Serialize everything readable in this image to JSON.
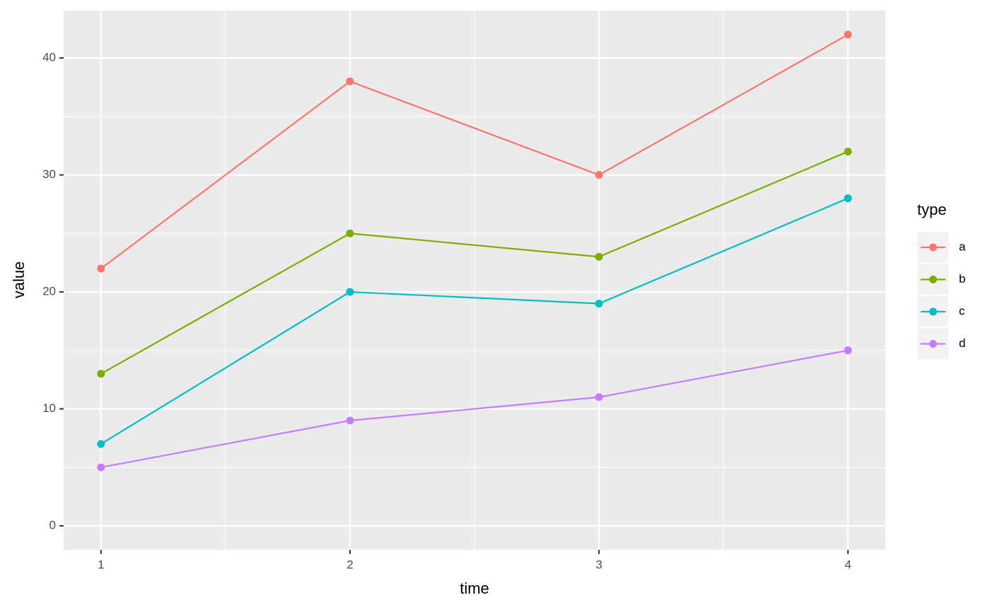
{
  "chart_data": {
    "type": "line",
    "x_label": "time",
    "y_label": "value",
    "x": [
      1,
      2,
      3,
      4
    ],
    "series": [
      {
        "name": "a",
        "color": "#F8766D",
        "values": [
          22,
          38,
          30,
          42
        ]
      },
      {
        "name": "b",
        "color": "#7CAE00",
        "values": [
          13,
          25,
          23,
          32
        ]
      },
      {
        "name": "c",
        "color": "#00BFC4",
        "values": [
          7,
          20,
          19,
          28
        ]
      },
      {
        "name": "d",
        "color": "#C77CFF",
        "values": [
          5,
          9,
          11,
          15
        ]
      }
    ],
    "xlim": [
      0.85,
      4.15
    ],
    "xticks": [
      1,
      2,
      3,
      4
    ],
    "ylim": [
      -2.05,
      44.05
    ],
    "yticks": [
      0,
      10,
      20,
      30,
      40
    ],
    "grid": true,
    "legend_title": "type",
    "legend_position": "right"
  }
}
